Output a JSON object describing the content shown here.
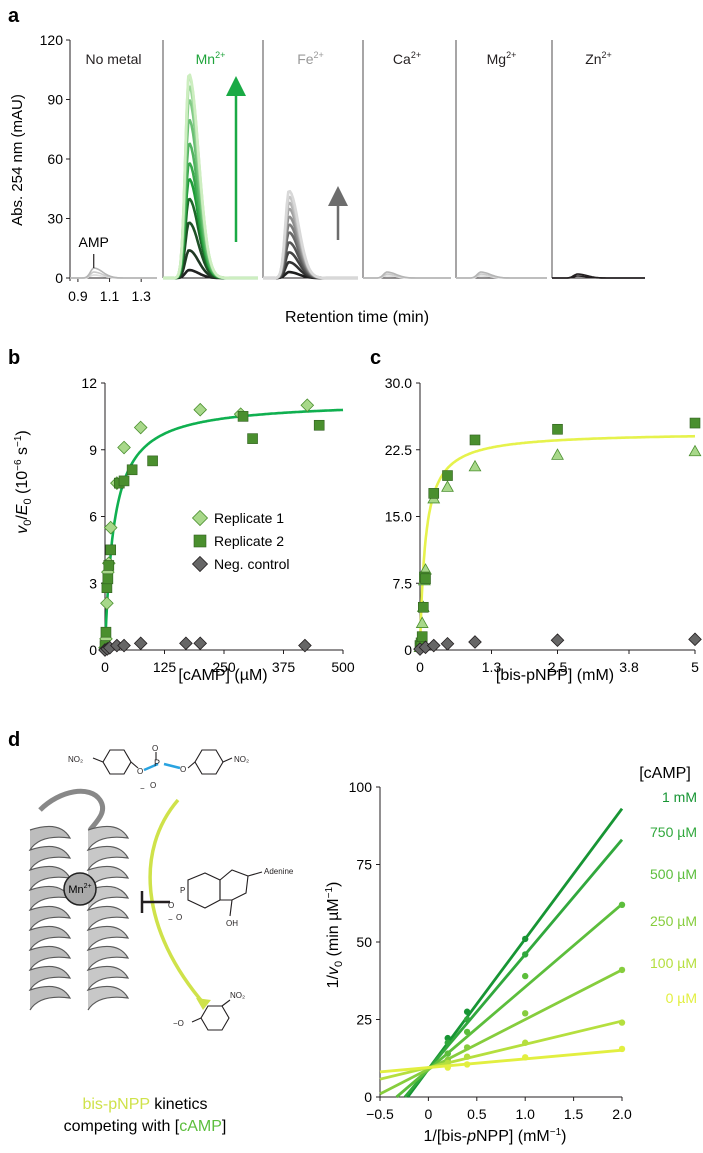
{
  "panel_labels": {
    "a": "a",
    "b": "b",
    "c": "c",
    "d": "d"
  },
  "colors": {
    "green": "#1aaa45",
    "mn_label": "#1fa43b",
    "fe_label": "#999999",
    "fe_arrow": "#6d6d6d",
    "fit_b": "#10b050",
    "fit_c": "#e6f24c",
    "rep1_fill": "#a8d88a",
    "rep2_fill": "#4a8f2e",
    "neg_fill": "#666666",
    "text": "#231f20"
  },
  "panel_a": {
    "y_label": "Abs. 254 nm (mAU)",
    "x_label": "Retention time (min)",
    "y_ticks": [
      "0",
      "30",
      "60",
      "90",
      "120"
    ],
    "x_ticks": [
      "0.9",
      "1.1",
      "1.3"
    ],
    "amp_label": "AMP",
    "subpanels": [
      {
        "label": "No metal",
        "sup": "",
        "label_color": "#231f20"
      },
      {
        "label": "Mn",
        "sup": "2+",
        "label_color": "#1fa43b"
      },
      {
        "label": "Fe",
        "sup": "2+",
        "label_color": "#999999"
      },
      {
        "label": "Ca",
        "sup": "2+",
        "label_color": "#231f20"
      },
      {
        "label": "Mg",
        "sup": "2+",
        "label_color": "#231f20"
      },
      {
        "label": "Zn",
        "sup": "2+",
        "label_color": "#231f20"
      }
    ]
  },
  "panel_d": {
    "caption_line1_colored": "bis-pNPP",
    "caption_line1_rest": " kinetics",
    "caption_line2_start": "competing with [",
    "caption_line2_colored": "cAMP",
    "caption_line2_end": "]",
    "no2": "NO₂",
    "ion_label": "Mn",
    "ion_sup": "2+",
    "adenine": "Adenine",
    "oh": "OH",
    "o_minus": "−O"
  },
  "chart_data": [
    {
      "id": "a",
      "type": "line",
      "title": "",
      "xlabel": "Retention time (min)",
      "ylabel": "Abs. 254 nm (mAU)",
      "xlim": [
        0.85,
        1.4
      ],
      "ylim": [
        0,
        120
      ],
      "x_ticks": [
        0.9,
        1.1,
        1.3
      ],
      "y_ticks": [
        0,
        30,
        60,
        90,
        120
      ],
      "series": [
        {
          "name": "No metal",
          "peak_heights": [
            1.5,
            3,
            5
          ]
        },
        {
          "name": "Mn2+",
          "peak_heights": [
            4,
            14,
            28,
            40,
            50,
            58,
            68,
            80,
            90,
            97,
            102,
            103
          ]
        },
        {
          "name": "Fe2+",
          "peak_heights": [
            3,
            8,
            13,
            18,
            23,
            27,
            31,
            35,
            38,
            41,
            44
          ]
        },
        {
          "name": "Ca2+",
          "peak_heights": [
            1,
            2,
            3
          ]
        },
        {
          "name": "Mg2+",
          "peak_heights": [
            1,
            2,
            3
          ]
        },
        {
          "name": "Zn2+",
          "peak_heights": [
            1,
            2
          ]
        }
      ]
    },
    {
      "id": "b",
      "type": "scatter",
      "title": "",
      "xlabel": "[cAMP] (µM)",
      "ylabel": "v0/E0 (10−6 s−1)",
      "xlim": [
        0,
        500
      ],
      "ylim": [
        0,
        12
      ],
      "x_ticks": [
        "0",
        "125",
        "250",
        "375",
        "500"
      ],
      "y_ticks": [
        "0",
        "3",
        "6",
        "9",
        "12"
      ],
      "legend_position": "center-right",
      "series": [
        {
          "name": "Replicate 1",
          "marker": "diamond",
          "x": [
            0,
            2,
            4,
            6,
            8,
            12,
            25,
            40,
            75,
            200,
            285,
            425
          ],
          "y": [
            0.1,
            0.5,
            2.1,
            3.5,
            3.9,
            5.5,
            7.5,
            9.1,
            10.0,
            10.8,
            10.6,
            11.0
          ]
        },
        {
          "name": "Replicate 2",
          "marker": "square",
          "x": [
            0,
            2,
            4,
            6,
            8,
            12,
            30,
            40,
            57,
            100,
            290,
            310,
            450
          ],
          "y": [
            0.2,
            0.8,
            2.8,
            3.2,
            3.8,
            4.5,
            7.5,
            7.6,
            8.1,
            8.5,
            10.5,
            9.5,
            10.1
          ]
        },
        {
          "name": "Neg. control",
          "marker": "diamond",
          "x": [
            0,
            5,
            10,
            25,
            40,
            75,
            170,
            200,
            420
          ],
          "y": [
            0,
            0.05,
            0.1,
            0.2,
            0.2,
            0.3,
            0.3,
            0.3,
            0.2
          ]
        }
      ],
      "fit": {
        "model": "michaelis-menten",
        "vmax": 11.2,
        "km": 19
      }
    },
    {
      "id": "c",
      "type": "scatter",
      "title": "",
      "xlabel": "[bis-pNPP] (mM)",
      "ylabel": "",
      "xlim": [
        0,
        5
      ],
      "ylim": [
        0,
        30
      ],
      "x_ticks": [
        "0",
        "1.3",
        "2.5",
        "3.8",
        "5"
      ],
      "y_ticks": [
        "0",
        "7.5",
        "15.0",
        "22.5",
        "30.0"
      ],
      "series": [
        {
          "name": "Replicate 1",
          "marker": "triangle",
          "x": [
            0,
            0.02,
            0.04,
            0.06,
            0.08,
            0.1,
            0.25,
            0.5,
            1.0,
            2.5,
            5.0
          ],
          "y": [
            0.3,
            1.2,
            3,
            4.8,
            7.8,
            9,
            17,
            18.3,
            20.6,
            21.9,
            22.3
          ]
        },
        {
          "name": "Replicate 2",
          "marker": "square",
          "x": [
            0,
            0.02,
            0.04,
            0.06,
            0.08,
            0.1,
            0.25,
            0.5,
            1.0,
            2.5,
            5.0
          ],
          "y": [
            0.5,
            0.8,
            1.5,
            4.8,
            8.2,
            8,
            17.6,
            19.6,
            23.6,
            24.8,
            25.5
          ]
        },
        {
          "name": "Neg. control",
          "marker": "diamond",
          "x": [
            0,
            0.1,
            0.25,
            0.5,
            1.0,
            2.5,
            5.0
          ],
          "y": [
            0.1,
            0.3,
            0.5,
            0.7,
            0.9,
            1.1,
            1.2
          ]
        }
      ],
      "fit": {
        "model": "michaelis-menten",
        "vmax": 24.5,
        "km": 0.1
      }
    },
    {
      "id": "d",
      "type": "line",
      "title": "",
      "xlabel": "1/[bis-pNPP] (mM−1)",
      "ylabel": "1/v0 (min µM−1)",
      "xlim": [
        -0.5,
        2.0
      ],
      "ylim": [
        0,
        100
      ],
      "x_ticks": [
        "−0.5",
        "0",
        "0.5",
        "1.0",
        "1.5",
        "2.0"
      ],
      "y_ticks": [
        "0",
        "25",
        "50",
        "75",
        "100"
      ],
      "legend_title": "[cAMP]",
      "series": [
        {
          "name": "1 mM",
          "color": "#179534",
          "slope": 42.0,
          "intercept": 9,
          "x_end": 2.0,
          "points_x": [
            0.2,
            0.4,
            1.0
          ],
          "points_y": [
            19.0,
            27.5,
            51.0
          ]
        },
        {
          "name": "750 µM",
          "color": "#31a83d",
          "slope": 37.0,
          "intercept": 9,
          "x_end": 2.0,
          "points_x": [
            0.2,
            0.4,
            1.0
          ],
          "points_y": [
            17.5,
            25.0,
            46.0
          ]
        },
        {
          "name": "500 µM",
          "color": "#5cbe3c",
          "slope": 26.7,
          "intercept": 8.8,
          "x_end": 2.0,
          "points_x": [
            0.2,
            0.4,
            1.0,
            2.0
          ],
          "points_y": [
            14.0,
            21.0,
            39.0,
            62.0
          ]
        },
        {
          "name": "250 µM",
          "color": "#86cd3d",
          "slope": 16.0,
          "intercept": 9,
          "x_end": 2.0,
          "points_x": [
            0.2,
            0.4,
            1.0,
            2.0
          ],
          "points_y": [
            12.0,
            16.0,
            27.0,
            41.0
          ]
        },
        {
          "name": "100 µM",
          "color": "#b5df3e",
          "slope": 7.5,
          "intercept": 9.5,
          "x_end": 2.0,
          "points_x": [
            0.2,
            0.4,
            1.0,
            2.0
          ],
          "points_y": [
            11.0,
            13.0,
            17.5,
            24.0
          ]
        },
        {
          "name": "0 µM",
          "color": "#e2ef40",
          "slope": 2.8,
          "intercept": 9.5,
          "x_end": 2.0,
          "points_x": [
            0.2,
            0.4,
            1.0,
            2.0
          ],
          "points_y": [
            9.5,
            10.5,
            12.8,
            15.5
          ]
        }
      ]
    }
  ]
}
